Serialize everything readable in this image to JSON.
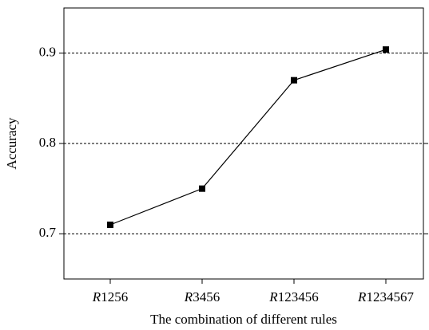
{
  "chart_data": {
    "type": "line",
    "x_label": "The combination of different rules",
    "y_label": "Accuracy",
    "categories": [
      "R1256",
      "R3456",
      "R123456",
      "R1234567"
    ],
    "values": [
      0.71,
      0.75,
      0.87,
      0.904
    ],
    "color": "#000000",
    "ylim": [
      0.65,
      0.95
    ],
    "yticks": [
      0.7,
      0.8,
      0.9
    ],
    "grid": true
  }
}
